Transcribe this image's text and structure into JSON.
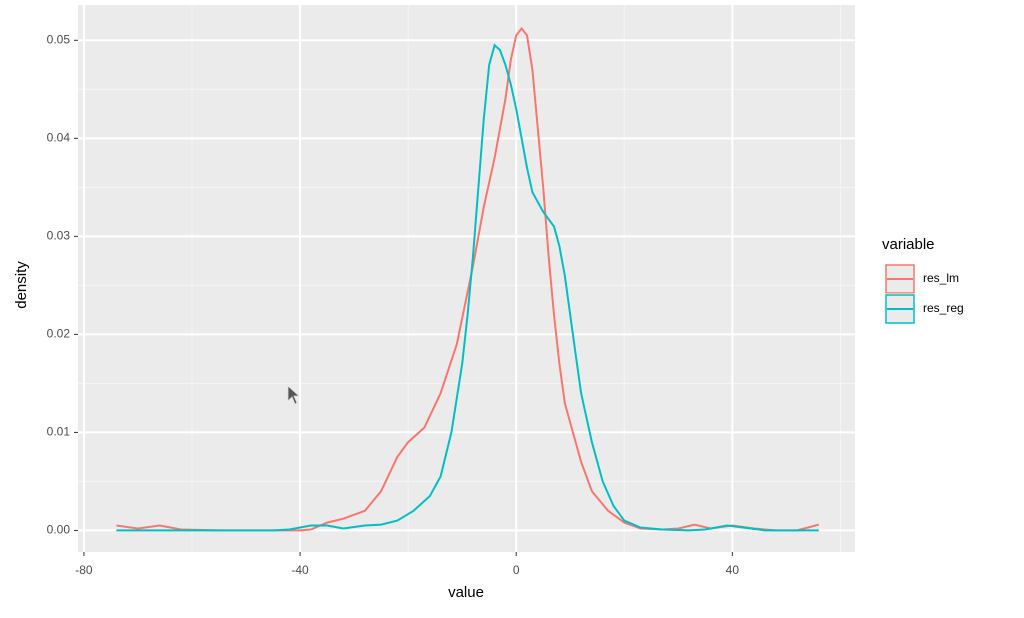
{
  "chart_data": {
    "type": "line",
    "x_label": "value",
    "y_label": "density",
    "legend_title": "variable",
    "xlim": [
      -81.1,
      62.7
    ],
    "ylim": [
      -0.0022,
      0.0536
    ],
    "xticks": [
      -80,
      -40,
      0,
      40
    ],
    "yticks": [
      {
        "value": 0,
        "label": "0.00"
      },
      0.01,
      0.02,
      0.03,
      0.04,
      0.05
    ],
    "xminor": [
      -60,
      -20,
      20,
      60
    ],
    "yminor": [
      0.005,
      0.015,
      0.025,
      0.035,
      0.045
    ],
    "grid": true,
    "legend": "right",
    "series": [
      {
        "name": "res_lm",
        "color": "#F8766D",
        "x": [
          -74,
          -70,
          -66,
          -62,
          -55,
          -45,
          -40,
          -38,
          -35,
          -32,
          -28,
          -25,
          -22,
          -20,
          -17,
          -14,
          -11,
          -8,
          -6,
          -4,
          -2,
          -1,
          0,
          1,
          2,
          3,
          4,
          5,
          6,
          7,
          8,
          9,
          10,
          12,
          14,
          17,
          20,
          23,
          27,
          30,
          33,
          36,
          40,
          44,
          48,
          52,
          54,
          56
        ],
        "values": [
          0.0005,
          0.0002,
          0.0005,
          0.0001,
          0,
          0,
          0,
          0.0001,
          0.0008,
          0.0012,
          0.002,
          0.004,
          0.0075,
          0.009,
          0.0105,
          0.014,
          0.019,
          0.027,
          0.033,
          0.038,
          0.044,
          0.048,
          0.0505,
          0.0512,
          0.0505,
          0.047,
          0.041,
          0.035,
          0.028,
          0.022,
          0.017,
          0.013,
          0.011,
          0.007,
          0.004,
          0.002,
          0.0008,
          0.0002,
          0.0001,
          0.0002,
          0.0006,
          0.0002,
          0.0005,
          0.0002,
          0,
          0,
          0.0003,
          0.0006
        ]
      },
      {
        "name": "res_reg",
        "color": "#00BFC4",
        "x": [
          -74,
          -60,
          -45,
          -42,
          -38,
          -35,
          -32,
          -28,
          -25,
          -22,
          -19,
          -16,
          -14,
          -12,
          -10,
          -9,
          -8,
          -7,
          -6,
          -5,
          -4,
          -3,
          -2,
          -1,
          0,
          1,
          2,
          3,
          5,
          7,
          8,
          9,
          10,
          11,
          12,
          14,
          16,
          18,
          20,
          23,
          27,
          32,
          35,
          39,
          42,
          46,
          52,
          56
        ],
        "values": [
          0,
          0,
          0,
          0.0001,
          0.0005,
          0.0005,
          0.0002,
          0.0005,
          0.0006,
          0.001,
          0.002,
          0.0035,
          0.0055,
          0.01,
          0.017,
          0.022,
          0.028,
          0.035,
          0.042,
          0.0475,
          0.0495,
          0.049,
          0.0475,
          0.0455,
          0.043,
          0.04,
          0.037,
          0.0345,
          0.0325,
          0.031,
          0.029,
          0.026,
          0.022,
          0.018,
          0.014,
          0.009,
          0.005,
          0.0025,
          0.001,
          0.0003,
          0.0001,
          0,
          0.0001,
          0.0005,
          0.0003,
          0,
          0,
          0
        ]
      }
    ]
  }
}
